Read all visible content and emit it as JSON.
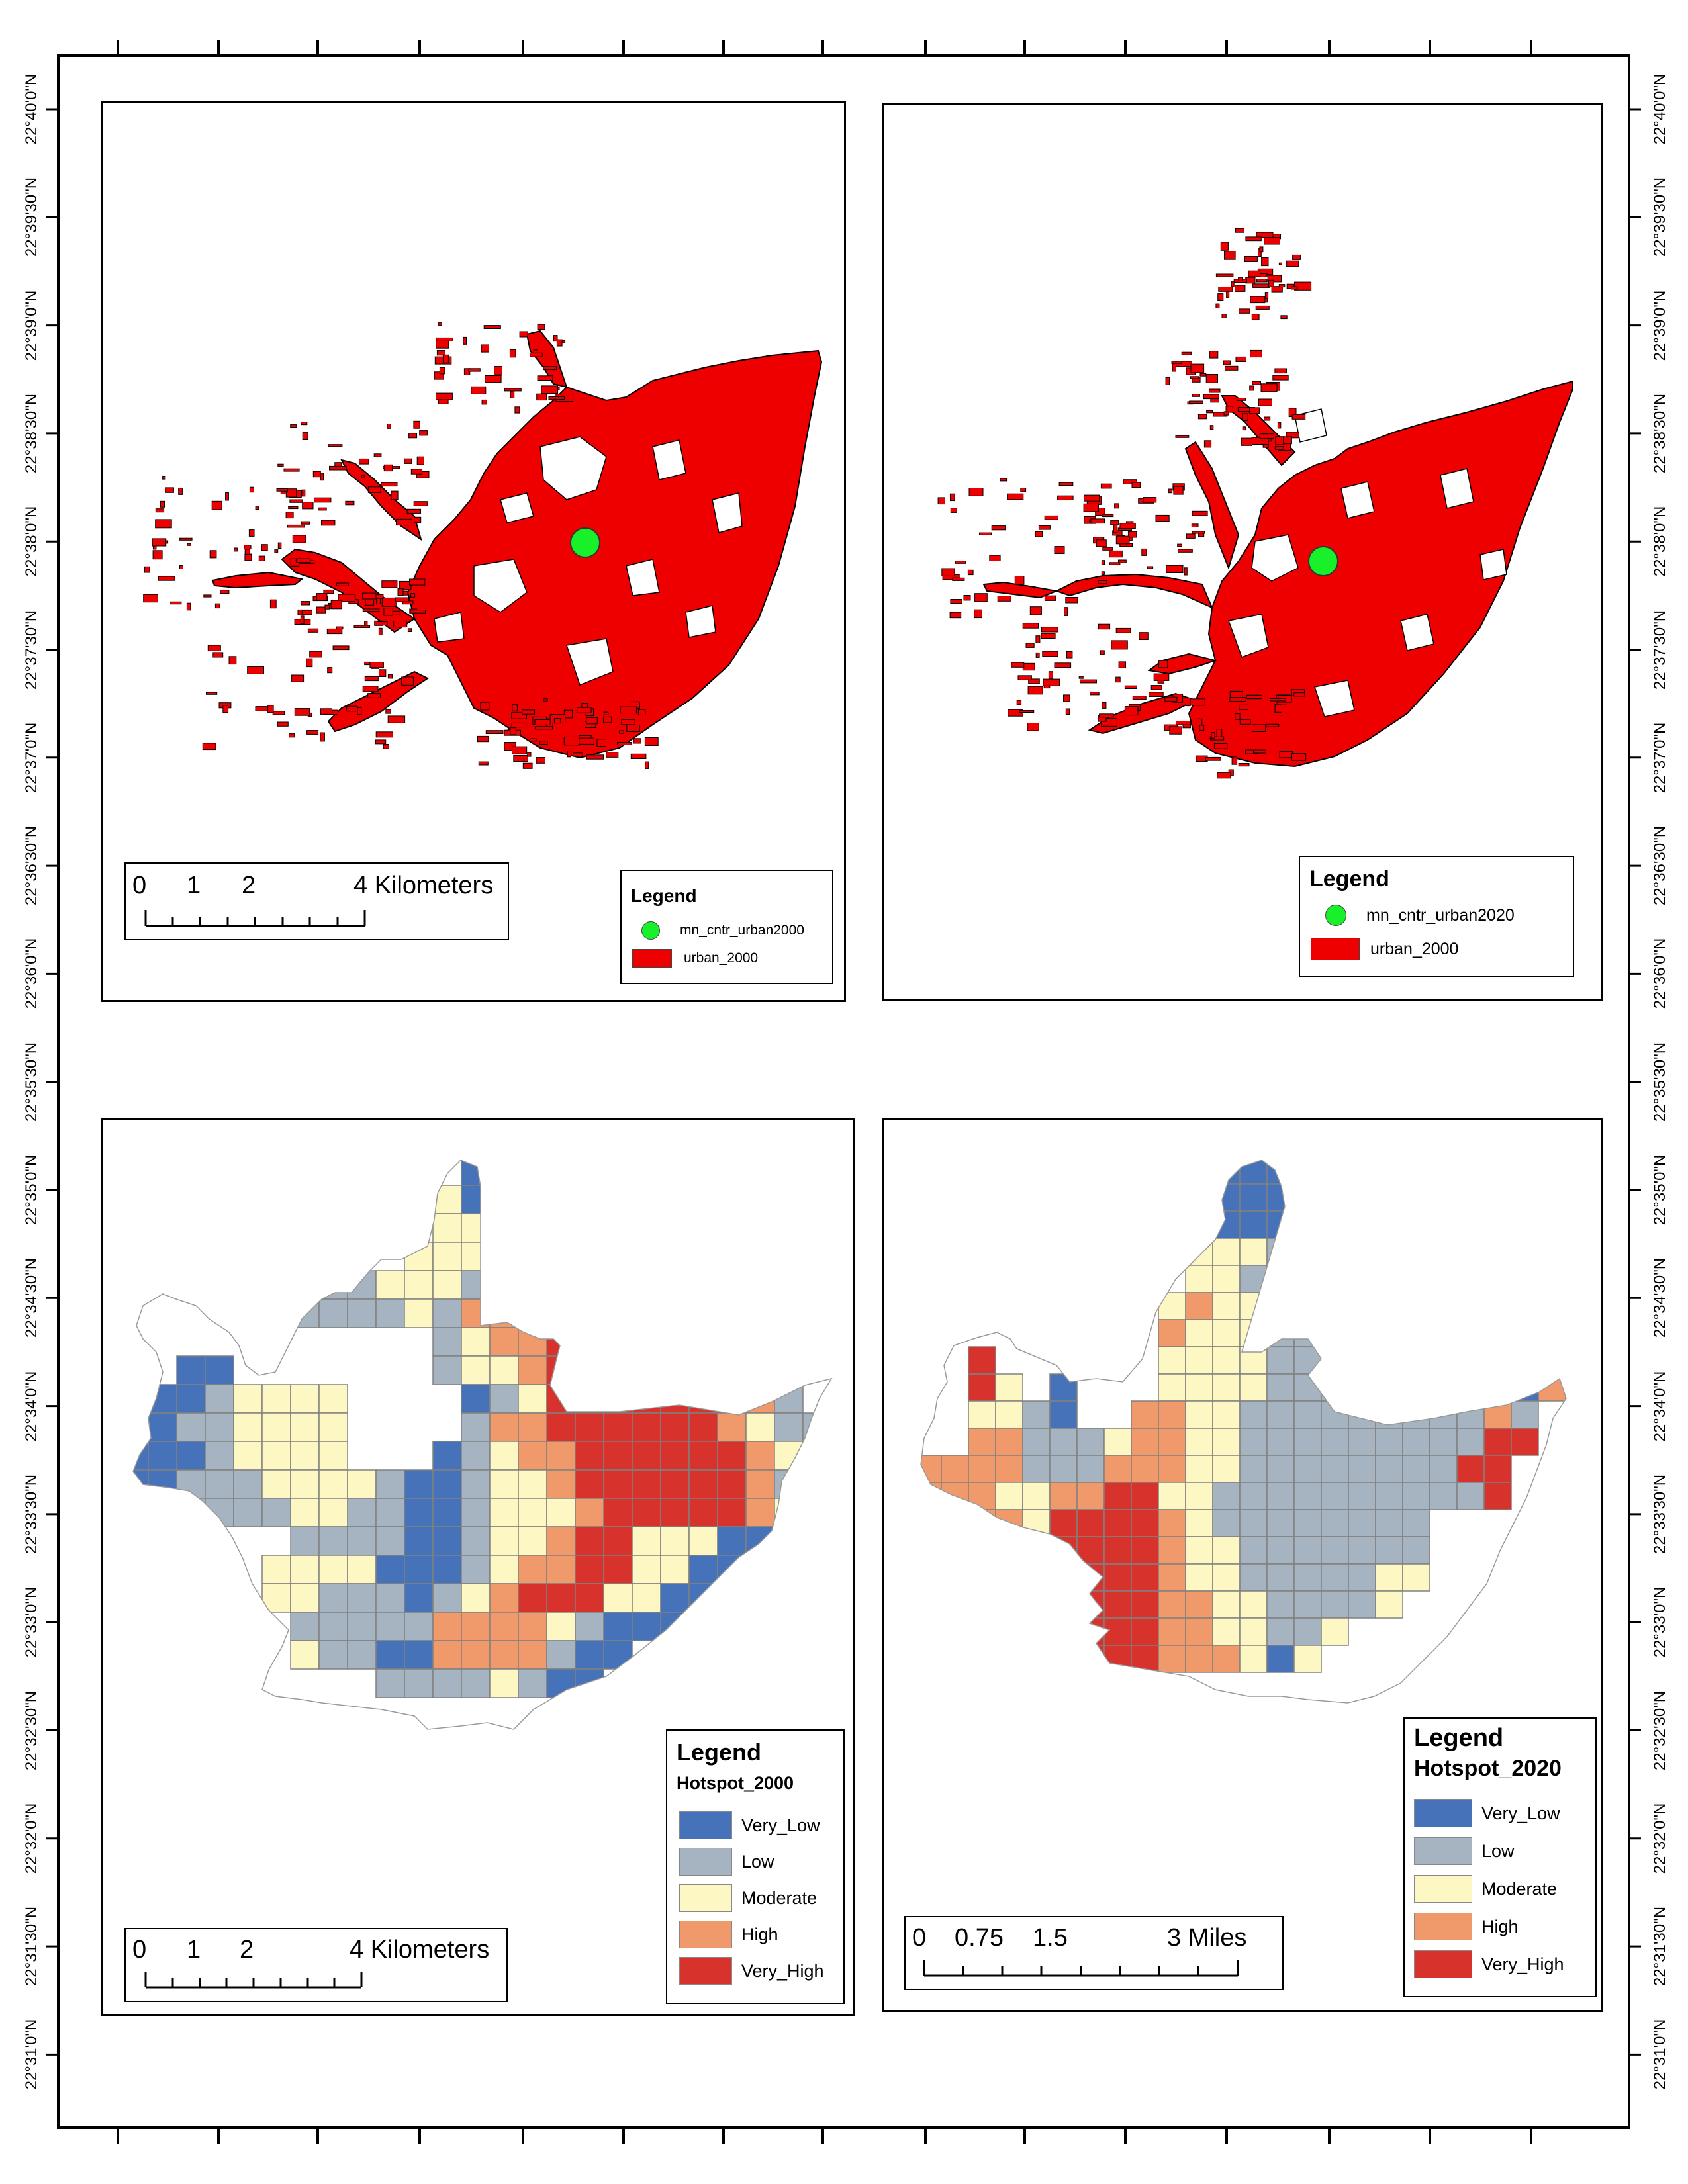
{
  "frame": {
    "latitude_labels": [
      "22°40'0\"N",
      "22°39'30\"N",
      "22°39'0\"N",
      "22°38'30\"N",
      "22°38'0\"N",
      "22°37'30\"N",
      "22°37'0\"N",
      "22°36'30\"N",
      "22°36'0\"N",
      "22°35'30\"N",
      "22°35'0\"N",
      "22°34'30\"N",
      "22°34'0\"N",
      "22°33'30\"N",
      "22°33'0\"N",
      "22°32'30\"N",
      "22°32'0\"N",
      "22°31'30\"N",
      "22°31'0\"N"
    ]
  },
  "colors": {
    "urban": "#ee0000",
    "centroid": "#18f02a",
    "very_low": "#4572b8",
    "low": "#a6b4c2",
    "moderate": "#fdf7c3",
    "high": "#f0996a",
    "very_high": "#d8322c",
    "grid_line": "#808080"
  },
  "panels": {
    "urban2000": {
      "legend": {
        "title": "Legend",
        "items": [
          {
            "label": "mn_cntr_urban2000",
            "symbol": "centroid"
          },
          {
            "label": "urban_2000",
            "symbol": "urban"
          }
        ]
      },
      "scalebar": {
        "labels": [
          "0",
          "1",
          "2",
          "4 Kilometers"
        ]
      }
    },
    "urban2020": {
      "legend": {
        "title": "Legend",
        "items": [
          {
            "label": "mn_cntr_urban2020",
            "symbol": "centroid"
          },
          {
            "label": "urban_2000",
            "symbol": "urban"
          }
        ]
      }
    },
    "hotspot2000": {
      "legend": {
        "title": "Legend",
        "layer": "Hotspot_2000",
        "items": [
          {
            "label": "Very_Low",
            "symbol": "very_low"
          },
          {
            "label": "Low",
            "symbol": "low"
          },
          {
            "label": "Moderate",
            "symbol": "moderate"
          },
          {
            "label": "High",
            "symbol": "high"
          },
          {
            "label": "Very_High",
            "symbol": "very_high"
          }
        ]
      },
      "scalebar": {
        "labels": [
          "0",
          "1",
          "2",
          "4 Kilometers"
        ]
      }
    },
    "hotspot2020": {
      "legend": {
        "title": "Legend",
        "layer": "Hotspot_2020",
        "items": [
          {
            "label": "Very_Low",
            "symbol": "very_low"
          },
          {
            "label": "Low",
            "symbol": "low"
          },
          {
            "label": "Moderate",
            "symbol": "moderate"
          },
          {
            "label": "High",
            "symbol": "high"
          },
          {
            "label": "Very_High",
            "symbol": "very_high"
          }
        ]
      },
      "scalebar": {
        "labels": [
          "0",
          "0.75",
          "1.5",
          "3 Miles"
        ]
      }
    }
  }
}
